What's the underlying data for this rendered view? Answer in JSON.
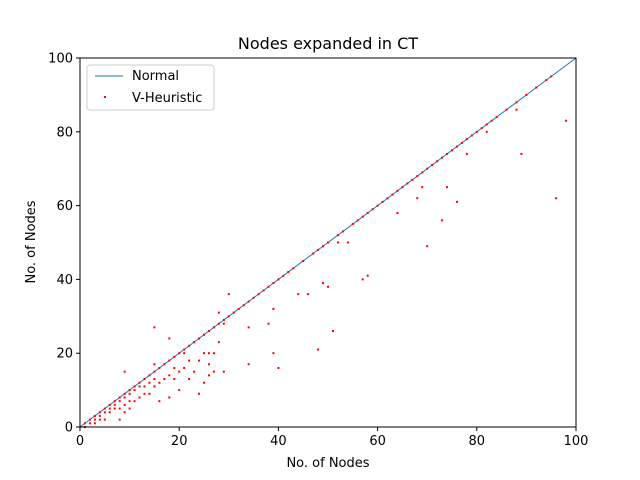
{
  "chart_data": {
    "type": "scatter",
    "title": "Nodes expanded in CT",
    "xlabel": "No. of Nodes",
    "ylabel": "No. of Nodes",
    "xlim": [
      0,
      100
    ],
    "ylim": [
      0,
      100
    ],
    "xticks": [
      "0",
      "20",
      "40",
      "60",
      "80",
      "100"
    ],
    "yticks": [
      "0",
      "20",
      "40",
      "60",
      "80",
      "100"
    ],
    "grid": false,
    "legend_position": "top-left",
    "colors": {
      "normal": "#1f77b4",
      "heuristic": "#ff0000"
    },
    "series": [
      {
        "name": "Normal",
        "kind": "line",
        "x": [
          0,
          100
        ],
        "y": [
          0,
          100
        ]
      },
      {
        "name": "V-Heuristic",
        "kind": "scatter",
        "points": [
          [
            1,
            0
          ],
          [
            1,
            1
          ],
          [
            2,
            1
          ],
          [
            2,
            2
          ],
          [
            3,
            1
          ],
          [
            3,
            2
          ],
          [
            3,
            3
          ],
          [
            4,
            2
          ],
          [
            4,
            3
          ],
          [
            4,
            4
          ],
          [
            5,
            2
          ],
          [
            5,
            4
          ],
          [
            5,
            5
          ],
          [
            6,
            4
          ],
          [
            6,
            5
          ],
          [
            6,
            6
          ],
          [
            7,
            5
          ],
          [
            7,
            6
          ],
          [
            7,
            7
          ],
          [
            8,
            2
          ],
          [
            8,
            5
          ],
          [
            8,
            7
          ],
          [
            8,
            8
          ],
          [
            9,
            4
          ],
          [
            9,
            6
          ],
          [
            9,
            8
          ],
          [
            9,
            9
          ],
          [
            9,
            15
          ],
          [
            10,
            5
          ],
          [
            10,
            7
          ],
          [
            10,
            9
          ],
          [
            10,
            10
          ],
          [
            11,
            7
          ],
          [
            11,
            10
          ],
          [
            11,
            11
          ],
          [
            12,
            8
          ],
          [
            12,
            11
          ],
          [
            12,
            12
          ],
          [
            13,
            9
          ],
          [
            13,
            11
          ],
          [
            13,
            13
          ],
          [
            14,
            9
          ],
          [
            14,
            12
          ],
          [
            14,
            14
          ],
          [
            15,
            11
          ],
          [
            15,
            13
          ],
          [
            15,
            15
          ],
          [
            15,
            17
          ],
          [
            15,
            27
          ],
          [
            16,
            7
          ],
          [
            16,
            12
          ],
          [
            16,
            16
          ],
          [
            17,
            13
          ],
          [
            17,
            17
          ],
          [
            18,
            8
          ],
          [
            18,
            14
          ],
          [
            18,
            18
          ],
          [
            18,
            24
          ],
          [
            19,
            13
          ],
          [
            19,
            16
          ],
          [
            19,
            19
          ],
          [
            20,
            10
          ],
          [
            20,
            15
          ],
          [
            20,
            20
          ],
          [
            21,
            16
          ],
          [
            21,
            20
          ],
          [
            21,
            21
          ],
          [
            22,
            13
          ],
          [
            22,
            18
          ],
          [
            22,
            22
          ],
          [
            23,
            15
          ],
          [
            23,
            23
          ],
          [
            24,
            9
          ],
          [
            24,
            18
          ],
          [
            24,
            24
          ],
          [
            25,
            12
          ],
          [
            25,
            20
          ],
          [
            25,
            25
          ],
          [
            26,
            14
          ],
          [
            26,
            17
          ],
          [
            26,
            20
          ],
          [
            26,
            26
          ],
          [
            27,
            15
          ],
          [
            27,
            20
          ],
          [
            27,
            27
          ],
          [
            28,
            23
          ],
          [
            28,
            28
          ],
          [
            28,
            31
          ],
          [
            29,
            15
          ],
          [
            29,
            28
          ],
          [
            29,
            29
          ],
          [
            30,
            36
          ],
          [
            30,
            30
          ],
          [
            31,
            31
          ],
          [
            32,
            32
          ],
          [
            33,
            33
          ],
          [
            34,
            17
          ],
          [
            34,
            27
          ],
          [
            34,
            34
          ],
          [
            35,
            35
          ],
          [
            36,
            36
          ],
          [
            37,
            37
          ],
          [
            38,
            28
          ],
          [
            38,
            38
          ],
          [
            39,
            32
          ],
          [
            39,
            20
          ],
          [
            39,
            39
          ],
          [
            40,
            16
          ],
          [
            40,
            40
          ],
          [
            41,
            41
          ],
          [
            42,
            42
          ],
          [
            43,
            43
          ],
          [
            44,
            36
          ],
          [
            45,
            45
          ],
          [
            46,
            36
          ],
          [
            47,
            47
          ],
          [
            48,
            21
          ],
          [
            48,
            48
          ],
          [
            49,
            39
          ],
          [
            50,
            38
          ],
          [
            49,
            49
          ],
          [
            50,
            50
          ],
          [
            51,
            26
          ],
          [
            52,
            50
          ],
          [
            52,
            52
          ],
          [
            53,
            53
          ],
          [
            54,
            50
          ],
          [
            55,
            55
          ],
          [
            56,
            56
          ],
          [
            57,
            40
          ],
          [
            57,
            57
          ],
          [
            58,
            41
          ],
          [
            58,
            58
          ],
          [
            59,
            59
          ],
          [
            60,
            60
          ],
          [
            61,
            61
          ],
          [
            62,
            62
          ],
          [
            63,
            63
          ],
          [
            64,
            58
          ],
          [
            64,
            64
          ],
          [
            65,
            65
          ],
          [
            66,
            66
          ],
          [
            67,
            67
          ],
          [
            68,
            62
          ],
          [
            68,
            68
          ],
          [
            69,
            65
          ],
          [
            69,
            69
          ],
          [
            70,
            49
          ],
          [
            70,
            70
          ],
          [
            71,
            71
          ],
          [
            72,
            72
          ],
          [
            73,
            56
          ],
          [
            73,
            73
          ],
          [
            74,
            65
          ],
          [
            74,
            74
          ],
          [
            75,
            75
          ],
          [
            76,
            61
          ],
          [
            76,
            76
          ],
          [
            77,
            77
          ],
          [
            78,
            74
          ],
          [
            78,
            78
          ],
          [
            79,
            79
          ],
          [
            80,
            80
          ],
          [
            81,
            81
          ],
          [
            82,
            80
          ],
          [
            82,
            82
          ],
          [
            83,
            83
          ],
          [
            84,
            84
          ],
          [
            86,
            86
          ],
          [
            88,
            86
          ],
          [
            88,
            88
          ],
          [
            89,
            74
          ],
          [
            90,
            90
          ],
          [
            92,
            92
          ],
          [
            94,
            94
          ],
          [
            95,
            95
          ],
          [
            96,
            62
          ],
          [
            98,
            83
          ]
        ]
      }
    ]
  }
}
